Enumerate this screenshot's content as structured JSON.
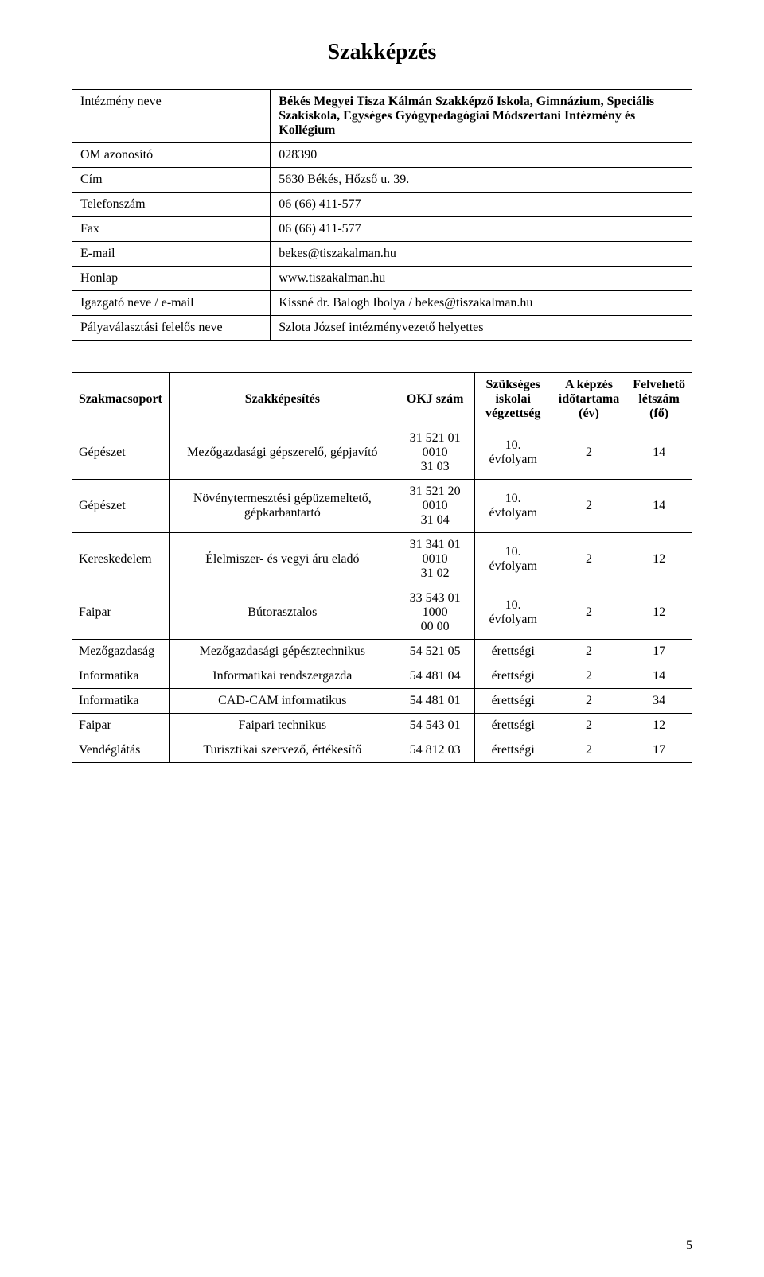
{
  "title": "Szakképzés",
  "info": {
    "rows": [
      {
        "label": "Intézmény neve",
        "value": "Békés Megyei Tisza Kálmán Szakképző Iskola, Gimnázium, Speciális Szakiskola, Egységes Gyógypedagógiai Módszertani Intézmény és Kollégium",
        "bold": true
      },
      {
        "label": "OM azonosító",
        "value": "028390"
      },
      {
        "label": "Cím",
        "value": "5630 Békés, Hőzső u. 39."
      },
      {
        "label": "Telefonszám",
        "value": "06 (66) 411-577"
      },
      {
        "label": "Fax",
        "value": "06 (66) 411-577"
      },
      {
        "label": "E-mail",
        "value": "bekes@tiszakalman.hu"
      },
      {
        "label": "Honlap",
        "value": "www.tiszakalman.hu"
      },
      {
        "label": "Igazgató neve / e-mail",
        "value": "Kissné dr. Balogh Ibolya / bekes@tiszakalman.hu"
      },
      {
        "label": "Pályaválasztási felelős neve",
        "value": "Szlota József intézményvezető helyettes"
      }
    ]
  },
  "courses": {
    "headers": {
      "c0": "Szakmacsoport",
      "c1": "Szakképesítés",
      "c2": "OKJ szám",
      "c3_l1": "Szükséges",
      "c3_l2": "iskolai",
      "c3_l3": "végzettség",
      "c4_l1": "A képzés",
      "c4_l2": "időtartama",
      "c4_l3": "(év)",
      "c5_l1": "Felvehető",
      "c5_l2": "létszám",
      "c5_l3": "(fő)"
    },
    "rows": [
      {
        "group": "Gépészet",
        "qual": "Mezőgazdasági gépszerelő, gépjavító",
        "okj_l1": "31 521 01 0010",
        "okj_l2": "31 03",
        "req": "10. évfolyam",
        "dur": "2",
        "cap": "14"
      },
      {
        "group": "Gépészet",
        "qual": "Növénytermesztési gépüzemeltető, gépkarbantartó",
        "okj_l1": "31 521 20 0010",
        "okj_l2": "31 04",
        "req": "10. évfolyam",
        "dur": "2",
        "cap": "14"
      },
      {
        "group": "Kereskedelem",
        "qual": "Élelmiszer- és vegyi áru eladó",
        "okj_l1": "31 341 01 0010",
        "okj_l2": "31 02",
        "req": "10. évfolyam",
        "dur": "2",
        "cap": "12"
      },
      {
        "group": "Faipar",
        "qual": "Bútorasztalos",
        "okj_l1": "33 543 01 1000",
        "okj_l2": "00 00",
        "req": "10. évfolyam",
        "dur": "2",
        "cap": "12"
      },
      {
        "group": "Mezőgazdaság",
        "qual": "Mezőgazdasági gépésztechnikus",
        "okj_l1": "54 521 05",
        "okj_l2": "",
        "req": "érettségi",
        "dur": "2",
        "cap": "17"
      },
      {
        "group": "Informatika",
        "qual": "Informatikai rendszergazda",
        "okj_l1": "54 481 04",
        "okj_l2": "",
        "req": "érettségi",
        "dur": "2",
        "cap": "14"
      },
      {
        "group": "Informatika",
        "qual": "CAD-CAM informatikus",
        "okj_l1": "54 481 01",
        "okj_l2": "",
        "req": "érettségi",
        "dur": "2",
        "cap": "34"
      },
      {
        "group": "Faipar",
        "qual": "Faipari technikus",
        "okj_l1": "54 543 01",
        "okj_l2": "",
        "req": "érettségi",
        "dur": "2",
        "cap": "12"
      },
      {
        "group": "Vendéglátás",
        "qual": "Turisztikai szervező, értékesítő",
        "okj_l1": "54 812 03",
        "okj_l2": "",
        "req": "érettségi",
        "dur": "2",
        "cap": "17"
      }
    ]
  },
  "page_number": "5"
}
